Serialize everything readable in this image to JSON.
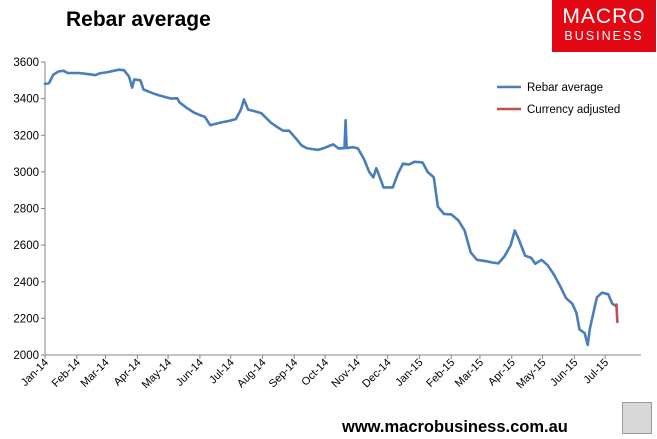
{
  "chart_data": {
    "type": "line",
    "title": "Rebar average",
    "ylim": [
      2000,
      3600
    ],
    "yticks": [
      2000,
      2200,
      2400,
      2600,
      2800,
      3000,
      3200,
      3400,
      3600
    ],
    "xlim": [
      "2014-01-01",
      "2015-08-05"
    ],
    "xticks": [
      {
        "label": "Jan-14",
        "date": "2014-01-01"
      },
      {
        "label": "Feb-14",
        "date": "2014-02-01"
      },
      {
        "label": "Mar-14",
        "date": "2014-03-01"
      },
      {
        "label": "Apr-14",
        "date": "2014-04-01"
      },
      {
        "label": "May-14",
        "date": "2014-05-01"
      },
      {
        "label": "Jun-14",
        "date": "2014-06-01"
      },
      {
        "label": "Jul-14",
        "date": "2014-07-01"
      },
      {
        "label": "Aug-14",
        "date": "2014-08-01"
      },
      {
        "label": "Sep-14",
        "date": "2014-09-01"
      },
      {
        "label": "Oct-14",
        "date": "2014-10-01"
      },
      {
        "label": "Nov-14",
        "date": "2014-11-01"
      },
      {
        "label": "Dec-14",
        "date": "2014-12-01"
      },
      {
        "label": "Jan-15",
        "date": "2015-01-01"
      },
      {
        "label": "Feb-15",
        "date": "2015-02-01"
      },
      {
        "label": "Mar-15",
        "date": "2015-03-01"
      },
      {
        "label": "Apr-15",
        "date": "2015-04-01"
      },
      {
        "label": "May-15",
        "date": "2015-05-01"
      },
      {
        "label": "Jun-15",
        "date": "2015-06-01"
      },
      {
        "label": "Jul-15",
        "date": "2015-07-01"
      }
    ],
    "grid": false,
    "legend": "top-right",
    "series": [
      {
        "name": "Rebar average",
        "color": "#4a7ebb",
        "points": [
          [
            "2014-01-01",
            3480
          ],
          [
            "2014-01-05",
            3485
          ],
          [
            "2014-01-09",
            3530
          ],
          [
            "2014-01-14",
            3548
          ],
          [
            "2014-01-19",
            3552
          ],
          [
            "2014-01-23",
            3540
          ],
          [
            "2014-02-03",
            3540
          ],
          [
            "2014-02-14",
            3533
          ],
          [
            "2014-02-19",
            3528
          ],
          [
            "2014-02-23",
            3538
          ],
          [
            "2014-03-03",
            3545
          ],
          [
            "2014-03-09",
            3552
          ],
          [
            "2014-03-14",
            3558
          ],
          [
            "2014-03-19",
            3555
          ],
          [
            "2014-03-24",
            3520
          ],
          [
            "2014-03-27",
            3460
          ],
          [
            "2014-03-29",
            3505
          ],
          [
            "2014-04-04",
            3500
          ],
          [
            "2014-04-07",
            3450
          ],
          [
            "2014-04-15",
            3432
          ],
          [
            "2014-04-21",
            3420
          ],
          [
            "2014-04-29",
            3408
          ],
          [
            "2014-05-04",
            3400
          ],
          [
            "2014-05-10",
            3402
          ],
          [
            "2014-05-12",
            3380
          ],
          [
            "2014-05-19",
            3350
          ],
          [
            "2014-05-26",
            3325
          ],
          [
            "2014-06-01",
            3310
          ],
          [
            "2014-06-06",
            3300
          ],
          [
            "2014-06-11",
            3255
          ],
          [
            "2014-06-16",
            3262
          ],
          [
            "2014-06-22",
            3270
          ],
          [
            "2014-06-29",
            3278
          ],
          [
            "2014-07-06",
            3288
          ],
          [
            "2014-07-11",
            3340
          ],
          [
            "2014-07-14",
            3395
          ],
          [
            "2014-07-18",
            3340
          ],
          [
            "2014-07-24",
            3332
          ],
          [
            "2014-07-31",
            3320
          ],
          [
            "2014-08-09",
            3270
          ],
          [
            "2014-08-14",
            3250
          ],
          [
            "2014-08-21",
            3225
          ],
          [
            "2014-08-27",
            3225
          ],
          [
            "2014-09-03",
            3180
          ],
          [
            "2014-09-08",
            3145
          ],
          [
            "2014-09-13",
            3130
          ],
          [
            "2014-09-18",
            3125
          ],
          [
            "2014-09-24",
            3120
          ],
          [
            "2014-10-01",
            3132
          ],
          [
            "2014-10-05",
            3142
          ],
          [
            "2014-10-09",
            3150
          ],
          [
            "2014-10-14",
            3128
          ],
          [
            "2014-10-20",
            3130
          ],
          [
            "2014-10-21",
            3282
          ],
          [
            "2014-10-22",
            3130
          ],
          [
            "2014-10-28",
            3135
          ],
          [
            "2014-11-02",
            3128
          ],
          [
            "2014-11-08",
            3070
          ],
          [
            "2014-11-13",
            3000
          ],
          [
            "2014-11-17",
            2970
          ],
          [
            "2014-11-20",
            3020
          ],
          [
            "2014-11-24",
            2962
          ],
          [
            "2014-11-27",
            2915
          ],
          [
            "2014-12-06",
            2915
          ],
          [
            "2014-12-11",
            2990
          ],
          [
            "2014-12-16",
            3045
          ],
          [
            "2014-12-22",
            3040
          ],
          [
            "2014-12-27",
            3055
          ],
          [
            "2015-01-04",
            3052
          ],
          [
            "2015-01-09",
            3000
          ],
          [
            "2015-01-15",
            2970
          ],
          [
            "2015-01-19",
            2810
          ],
          [
            "2015-01-25",
            2770
          ],
          [
            "2015-02-01",
            2768
          ],
          [
            "2015-02-08",
            2735
          ],
          [
            "2015-02-14",
            2680
          ],
          [
            "2015-02-20",
            2560
          ],
          [
            "2015-02-26",
            2520
          ],
          [
            "2015-03-07",
            2512
          ],
          [
            "2015-03-13",
            2505
          ],
          [
            "2015-03-19",
            2500
          ],
          [
            "2015-03-25",
            2540
          ],
          [
            "2015-03-31",
            2600
          ],
          [
            "2015-04-04",
            2680
          ],
          [
            "2015-04-08",
            2630
          ],
          [
            "2015-04-14",
            2542
          ],
          [
            "2015-04-20",
            2530
          ],
          [
            "2015-04-24",
            2498
          ],
          [
            "2015-04-30",
            2520
          ],
          [
            "2015-05-06",
            2490
          ],
          [
            "2015-05-12",
            2440
          ],
          [
            "2015-05-18",
            2378
          ],
          [
            "2015-05-24",
            2310
          ],
          [
            "2015-05-30",
            2280
          ],
          [
            "2015-06-03",
            2230
          ],
          [
            "2015-06-06",
            2140
          ],
          [
            "2015-06-11",
            2120
          ],
          [
            "2015-06-14",
            2055
          ],
          [
            "2015-06-16",
            2140
          ],
          [
            "2015-06-20",
            2240
          ],
          [
            "2015-06-23",
            2315
          ],
          [
            "2015-06-28",
            2340
          ],
          [
            "2015-07-04",
            2332
          ],
          [
            "2015-07-08",
            2280
          ],
          [
            "2015-07-11",
            2270
          ]
        ]
      },
      {
        "name": "Currency adjusted",
        "color": "#c0504d",
        "points": [
          [
            "2015-07-11",
            2270
          ],
          [
            "2015-07-12",
            2275
          ],
          [
            "2015-07-13",
            2180
          ]
        ]
      }
    ]
  },
  "branding": {
    "logo_line1": "MACRO",
    "logo_line2": "BUSINESS",
    "footer_url": "www.macrobusiness.com.au"
  }
}
